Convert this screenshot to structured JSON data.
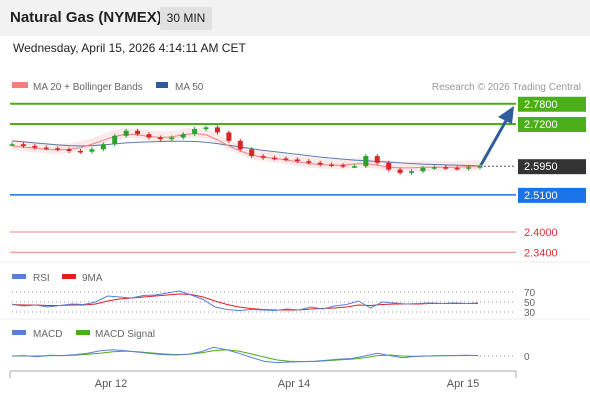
{
  "header": {
    "title": "Natural Gas (NYMEX)",
    "timeframe": "30 MIN",
    "datetime": "Wednesday, April 15, 2026 4:14:11 AM CET"
  },
  "legend": {
    "ma20_label": "MA 20 + Bollinger Bands",
    "ma50_label": "MA 50",
    "credit": "Research © 2026 Trading Central"
  },
  "colors": {
    "ma20": "#f08080",
    "ma50": "#2f5d9a",
    "resistance": "#4caf1a",
    "support": "#1a73e8",
    "last": "#333333",
    "lower_levels": "#f08080",
    "rsi": "#5b7fd6",
    "rsi_9ma": "#e02020",
    "macd": "#5b7fd6",
    "macd_signal": "#4caf1a",
    "price_up": "#2ca02c",
    "price_down": "#d62728"
  },
  "chart_data": {
    "type": "line",
    "title": "Natural Gas (NYMEX)",
    "timeframe": "30 MIN",
    "x_ticks": [
      "Apr 12",
      "Apr 14",
      "Apr 15"
    ],
    "ylim": [
      2.32,
      2.8
    ],
    "price_series": {
      "name": "Price",
      "values": [
        2.66,
        2.655,
        2.65,
        2.648,
        2.645,
        2.64,
        2.638,
        2.645,
        2.66,
        2.685,
        2.7,
        2.69,
        2.68,
        2.675,
        2.68,
        2.69,
        2.705,
        2.71,
        2.695,
        2.67,
        2.645,
        2.625,
        2.62,
        2.618,
        2.615,
        2.61,
        2.605,
        2.6,
        2.598,
        2.595,
        2.595,
        2.625,
        2.605,
        2.585,
        2.575,
        2.58,
        2.59,
        2.592,
        2.59,
        2.588,
        2.592,
        2.595
      ]
    },
    "ma20_series": {
      "name": "MA 20",
      "values": [
        2.655,
        2.652,
        2.648,
        2.645,
        2.643,
        2.645,
        2.65,
        2.66,
        2.672,
        2.683,
        2.69,
        2.688,
        2.683,
        2.68,
        2.682,
        2.688,
        2.692,
        2.688,
        2.673,
        2.655,
        2.64,
        2.628,
        2.622,
        2.618,
        2.613,
        2.608,
        2.603,
        2.6,
        2.598,
        2.598,
        2.602,
        2.603,
        2.598,
        2.592,
        2.59,
        2.59,
        2.592,
        2.592,
        2.592,
        2.592,
        2.594,
        2.595
      ]
    },
    "ma50_series": {
      "name": "MA 50",
      "values": [
        2.67,
        2.667,
        2.664,
        2.661,
        2.658,
        2.656,
        2.655,
        2.656,
        2.658,
        2.661,
        2.664,
        2.666,
        2.667,
        2.668,
        2.669,
        2.669,
        2.668,
        2.666,
        2.662,
        2.657,
        2.652,
        2.647,
        2.642,
        2.638,
        2.634,
        2.63,
        2.626,
        2.622,
        2.619,
        2.616,
        2.613,
        2.611,
        2.609,
        2.607,
        2.605,
        2.603,
        2.601,
        2.6,
        2.599,
        2.598,
        2.597,
        2.596
      ]
    },
    "levels": [
      {
        "value": 2.78,
        "label": "2.7800",
        "kind": "resistance"
      },
      {
        "value": 2.72,
        "label": "2.7200",
        "kind": "resistance"
      },
      {
        "value": 2.595,
        "label": "2.5950",
        "kind": "last"
      },
      {
        "value": 2.51,
        "label": "2.5100",
        "kind": "support"
      },
      {
        "value": 2.4,
        "label": "2.4000",
        "kind": "lower"
      },
      {
        "value": 2.34,
        "label": "2.3400",
        "kind": "lower"
      }
    ],
    "rsi": {
      "labels": [
        "RSI",
        "9MA"
      ],
      "ticks": [
        "70",
        "50",
        "30"
      ],
      "ylim": [
        20,
        80
      ],
      "rsi_values": [
        45,
        42,
        44,
        40,
        43,
        46,
        45,
        50,
        62,
        60,
        58,
        63,
        64,
        68,
        72,
        64,
        55,
        40,
        35,
        33,
        35,
        34,
        33,
        36,
        34,
        40,
        36,
        42,
        45,
        52,
        38,
        50,
        48,
        46,
        47,
        48,
        47,
        48,
        47,
        48
      ],
      "ma_values": [
        45,
        44,
        44,
        43,
        43,
        44,
        44,
        46,
        52,
        56,
        58,
        60,
        62,
        64,
        66,
        65,
        60,
        52,
        45,
        40,
        37,
        35,
        34,
        34,
        34,
        36,
        37,
        38,
        40,
        44,
        43,
        45,
        46,
        46,
        46,
        47,
        47,
        47,
        47,
        47
      ]
    },
    "macd": {
      "labels": [
        "MACD",
        "MACD Signal"
      ],
      "ticks": [
        "0"
      ],
      "ylim": [
        -0.02,
        0.02
      ],
      "macd_values": [
        0.0,
        0.0005,
        -0.001,
        0.001,
        0.0005,
        0.002,
        0.004,
        0.0075,
        0.009,
        0.0075,
        0.0055,
        0.0035,
        0.002,
        0.0015,
        0.0025,
        0.006,
        0.0125,
        0.009,
        0.004,
        -0.002,
        -0.0075,
        -0.0095,
        -0.0085,
        -0.008,
        -0.0075,
        -0.006,
        -0.0045,
        -0.0035,
        0.0,
        0.004,
        0.0005,
        -0.0025,
        -0.0005,
        0.0,
        0.0005,
        0.0005,
        0.001,
        0.0005
      ],
      "signal_values": [
        0.0,
        0.0,
        0.0,
        0.0005,
        0.0005,
        0.001,
        0.0025,
        0.004,
        0.006,
        0.007,
        0.006,
        0.0045,
        0.003,
        0.002,
        0.0025,
        0.0045,
        0.0075,
        0.009,
        0.007,
        0.003,
        -0.0015,
        -0.0055,
        -0.0075,
        -0.008,
        -0.0078,
        -0.0068,
        -0.0055,
        -0.0045,
        -0.0025,
        0.0005,
        0.0015,
        0.0,
        -0.0005,
        0.0,
        0.0003,
        0.0005,
        0.0007,
        0.0008
      ]
    }
  }
}
